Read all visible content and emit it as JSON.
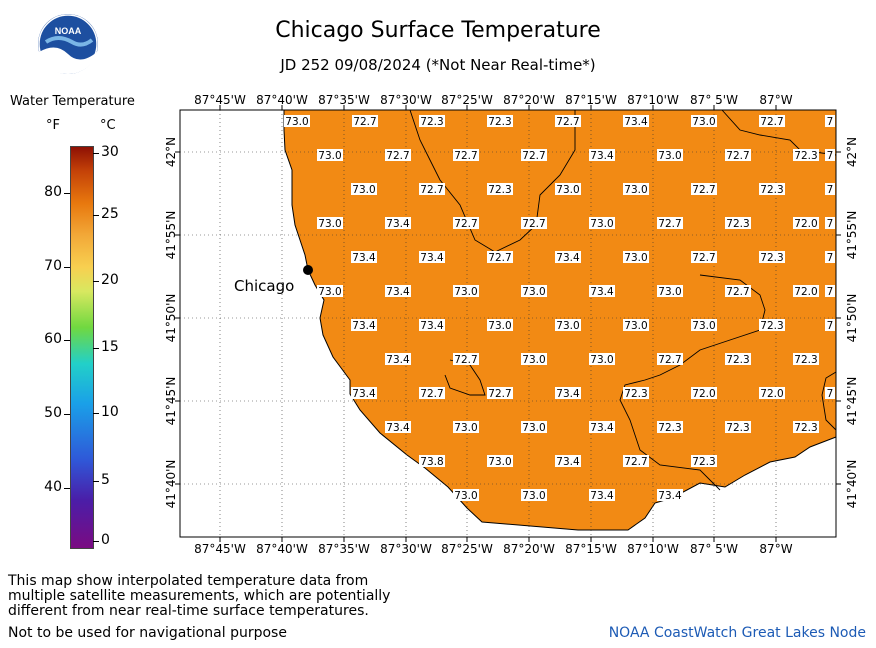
{
  "title": "Chicago Surface Temperature",
  "subtitle": "JD 252 09/08/2024 (*Not Near Real-time*)",
  "logo": {
    "text": "NOAA",
    "icon": "noaa-logo"
  },
  "legend": {
    "title": "Water Temperature",
    "unit_f": "°F",
    "unit_c": "°C",
    "fahrenheit_ticks": [
      "80",
      "70",
      "60",
      "50",
      "40"
    ],
    "celsius_ticks": [
      "30",
      "25",
      "20",
      "15",
      "10",
      "5",
      "0"
    ],
    "colors": {
      "high": "#8e1004",
      "mid": "#e8780e",
      "low": "#7a0b82"
    }
  },
  "map": {
    "water_color": "#f28a14",
    "land_color": "#ffffff",
    "city_label": "Chicago",
    "lon_labels": [
      "87°45'W",
      "87°40'W",
      "87°35'W",
      "87°30'W",
      "87°25'W",
      "87°20'W",
      "87°15'W",
      "87°10'W",
      "87° 5'W",
      "87°W"
    ],
    "lat_labels": [
      "42°N",
      "41°55'N",
      "41°50'N",
      "41°45'N",
      "41°40'N"
    ],
    "temperature_rows": [
      [
        "73.0",
        "72.7",
        "72.3",
        "72.3",
        "72.7",
        "73.4",
        "73.0",
        "72.7",
        "7"
      ],
      [
        "73.0",
        "72.7",
        "72.7",
        "72.7",
        "73.4",
        "73.0",
        "72.7",
        "72.3",
        "7"
      ],
      [
        "73.0",
        "72.7",
        "72.3",
        "73.0",
        "73.0",
        "72.7",
        "72.3",
        "7"
      ],
      [
        "73.0",
        "73.4",
        "72.7",
        "72.7",
        "73.0",
        "72.7",
        "72.3",
        "72.0",
        "7"
      ],
      [
        "73.4",
        "73.4",
        "72.7",
        "73.4",
        "73.0",
        "72.7",
        "72.3",
        "7"
      ],
      [
        "73.0",
        "73.4",
        "73.0",
        "73.0",
        "73.4",
        "73.0",
        "72.7",
        "72.0",
        "7"
      ],
      [
        "73.4",
        "73.4",
        "73.0",
        "73.0",
        "73.0",
        "73.0",
        "72.3",
        "7"
      ],
      [
        "73.4",
        "72.7",
        "73.0",
        "73.0",
        "72.7",
        "72.3",
        "72.3"
      ],
      [
        "73.4",
        "72.7",
        "72.7",
        "73.4",
        "72.3",
        "72.0",
        "72.0",
        "7"
      ],
      [
        "73.4",
        "73.0",
        "73.0",
        "73.4",
        "72.3",
        "72.3",
        "72.3"
      ],
      [
        "73.8",
        "73.0",
        "73.4",
        "72.7",
        "72.3"
      ],
      [
        "73.0",
        "73.0",
        "73.4",
        "73.4"
      ]
    ]
  },
  "notes": {
    "line1": "This map show interpolated temperature data from",
    "line2": "multiple satellite measurements, which are potentially",
    "line3": "different from near real-time surface temperatures.",
    "navigation": "Not to be used for navigational purpose"
  },
  "credit": "NOAA CoastWatch Great Lakes Node"
}
